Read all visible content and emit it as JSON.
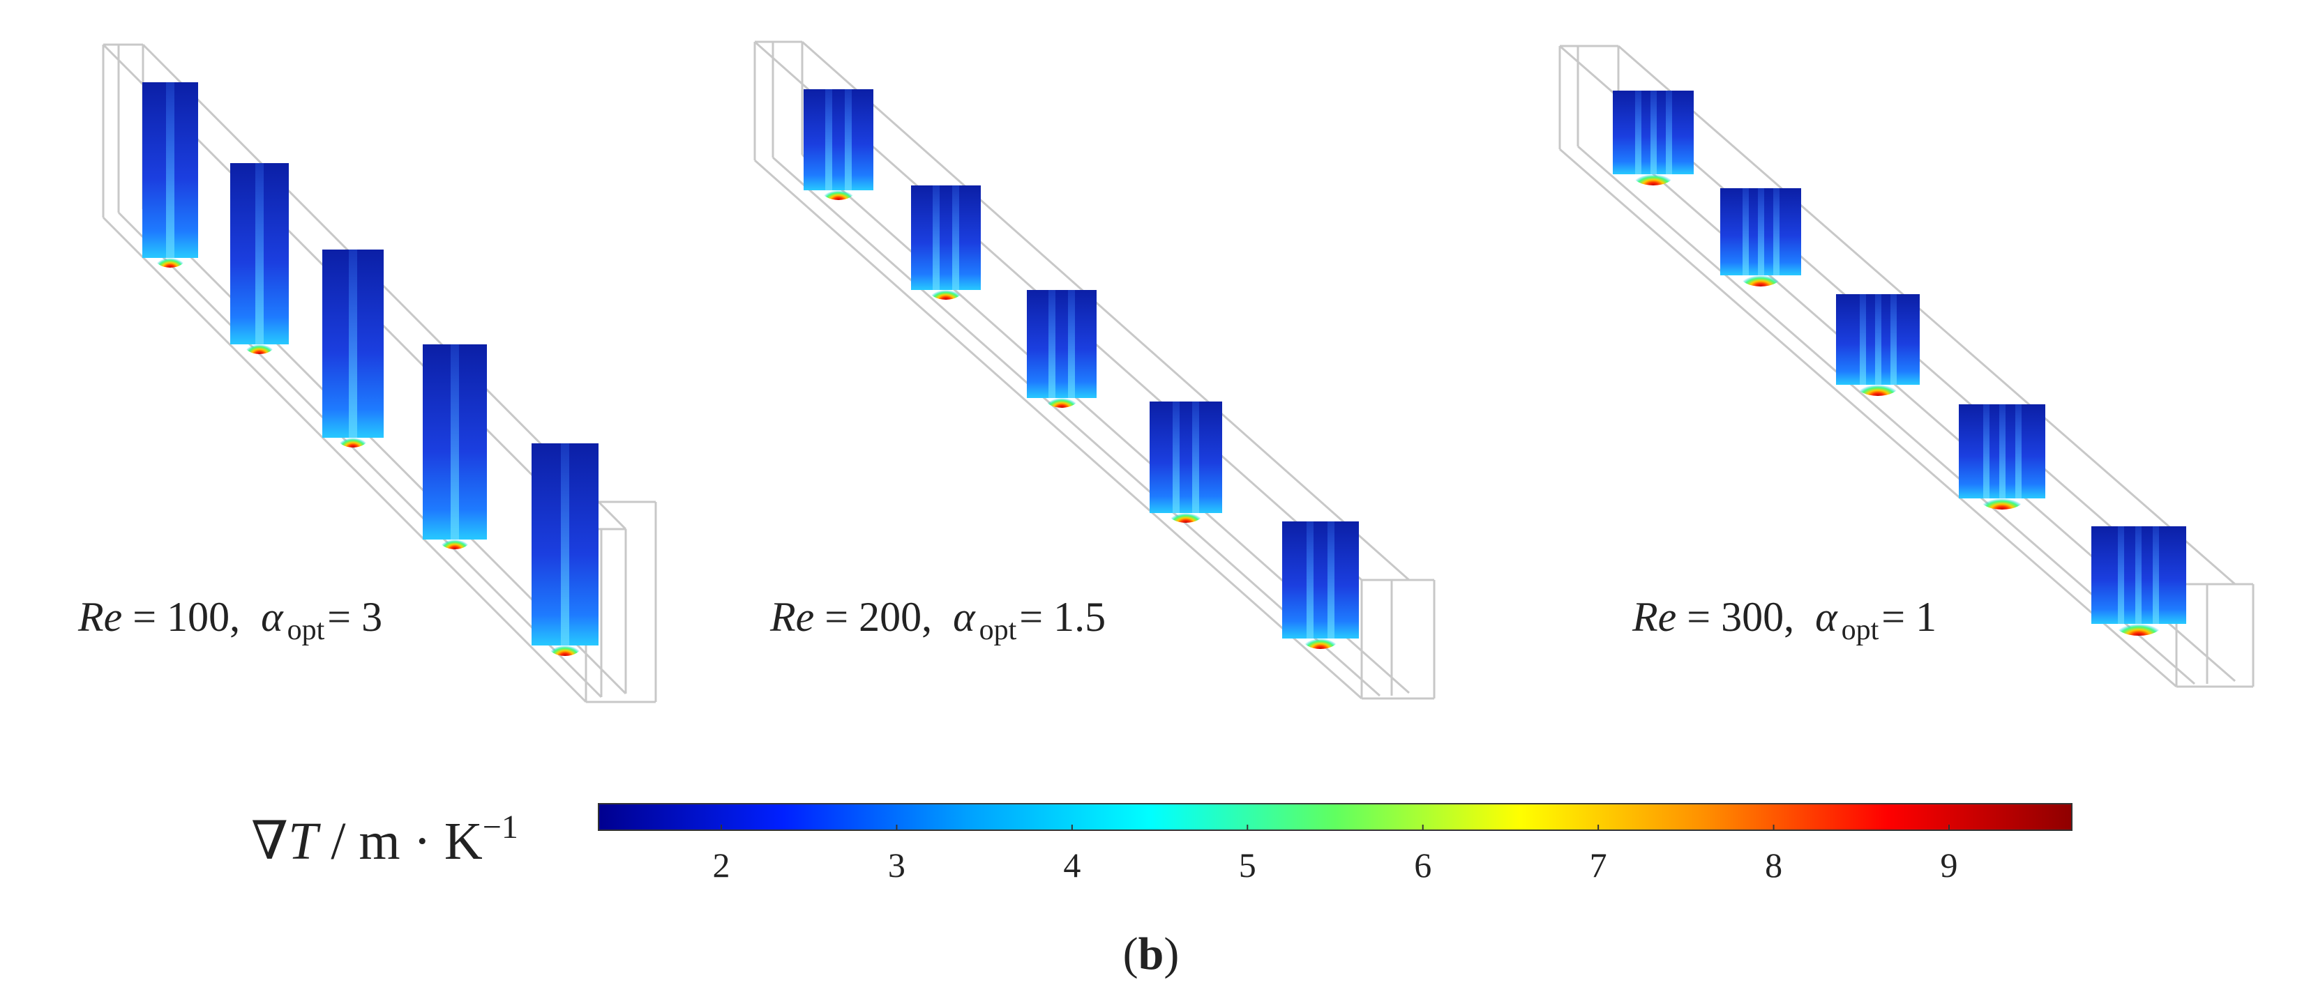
{
  "panels": [
    {
      "re_symbol": "Re",
      "eq": " = ",
      "re_value": "100,",
      "alpha_symbol": "α",
      "alpha_sub": "opt",
      "alpha_value": "= 3",
      "fins": 1
    },
    {
      "re_symbol": "Re",
      "eq": " = ",
      "re_value": "200,",
      "alpha_symbol": "α",
      "alpha_sub": "opt",
      "alpha_value": "= 1.5",
      "fins": 2
    },
    {
      "re_symbol": "Re",
      "eq": " = ",
      "re_value": "300,",
      "alpha_symbol": "α",
      "alpha_sub": "opt",
      "alpha_value": "= 1",
      "fins": 3
    }
  ],
  "colorbar": {
    "label_symbol": "∇",
    "label_var": "T",
    "label_unit": " / m · K",
    "label_exp": "−1",
    "min": 1.3,
    "max": 9.7,
    "ticks": [
      "2",
      "3",
      "4",
      "5",
      "6",
      "7",
      "8",
      "9"
    ],
    "colors": [
      "#00008f",
      "#0020ff",
      "#00a0ff",
      "#00ffff",
      "#60ff60",
      "#ffff00",
      "#ff9000",
      "#ff0000",
      "#8f0000"
    ]
  },
  "caption": {
    "open": "(",
    "letter": "b",
    "close": ")"
  },
  "colors": {
    "frame": "#c8c8c8",
    "field_base": "#1a3fd8",
    "field_deep": "#0a1f8a",
    "hot": "#ff2a00"
  }
}
